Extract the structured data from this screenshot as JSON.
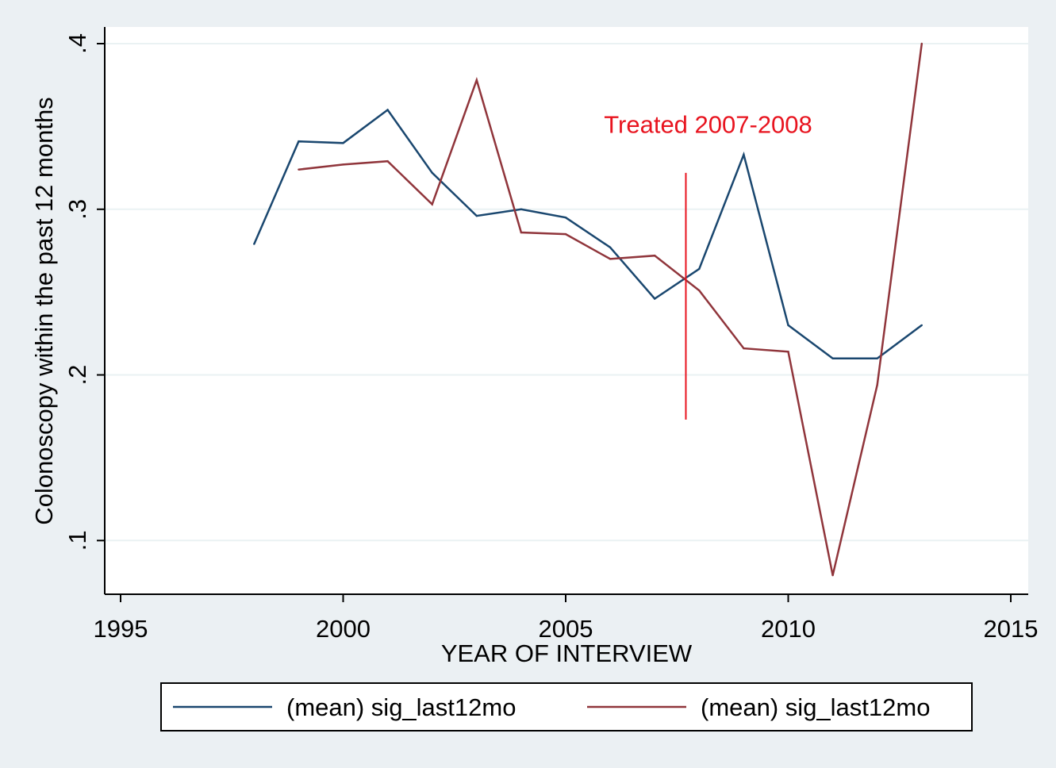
{
  "chart_data": {
    "type": "line",
    "title": "",
    "xlabel": "YEAR OF INTERVIEW",
    "ylabel": "Colonoscopy within the past 12 months",
    "xlim": [
      1995,
      2015
    ],
    "ylim": [
      0.067,
      0.4
    ],
    "xticks": [
      1995,
      2000,
      2005,
      2010,
      2015
    ],
    "xtick_labels": [
      "1995",
      "2000",
      "2005",
      "2010",
      "2015"
    ],
    "yticks": [
      0.1,
      0.2,
      0.3,
      0.4
    ],
    "ytick_labels": [
      ".1",
      ".2",
      ".3",
      ".4"
    ],
    "grid": true,
    "legend_position": "bottom",
    "series": [
      {
        "name": "(mean) sig_last12mo",
        "color": "#1a476f",
        "x": [
          1998,
          1999,
          2000,
          2001,
          2002,
          2003,
          2004,
          2005,
          2006,
          2007,
          2008,
          2009,
          2010,
          2011,
          2012,
          2013
        ],
        "y": [
          0.279,
          0.341,
          0.34,
          0.36,
          0.322,
          0.296,
          0.3,
          0.295,
          0.277,
          0.246,
          0.264,
          0.333,
          0.23,
          0.21,
          0.21,
          0.23
        ]
      },
      {
        "name": "(mean) sig_last12mo",
        "color": "#90353b",
        "x": [
          1999,
          2000,
          2001,
          2002,
          2003,
          2004,
          2005,
          2006,
          2007,
          2008,
          2009,
          2010,
          2011,
          2012,
          2013
        ],
        "y": [
          0.324,
          0.327,
          0.329,
          0.303,
          0.378,
          0.286,
          0.285,
          0.27,
          0.272,
          0.251,
          0.216,
          0.214,
          0.079,
          0.194,
          0.4
        ]
      }
    ],
    "annotations": [
      {
        "type": "vline",
        "x": 2007.7,
        "y_range": [
          0.173,
          0.322
        ],
        "color": "#e8141f"
      },
      {
        "type": "text",
        "text": "Treated 2007-2008",
        "x": 2008.2,
        "y": 0.346,
        "color": "#e8141f"
      }
    ]
  }
}
